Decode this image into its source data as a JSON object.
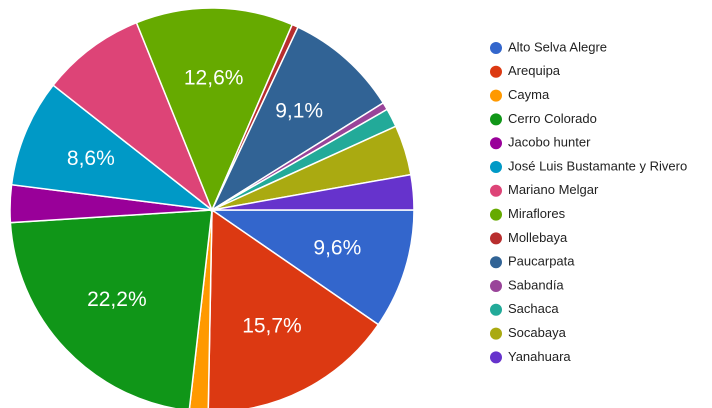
{
  "chart_data": {
    "type": "pie",
    "categories": [
      "Alto Selva Alegre",
      "Arequipa",
      "Cayma",
      "Cerro Colorado",
      "Jacobo hunter",
      "José Luis Bustamante y Rivero",
      "Mariano Melgar",
      "Miraflores",
      "Mollebaya",
      "Paucarpata",
      "Sabandía",
      "Sachaca",
      "Socabaya",
      "Yanahuara"
    ],
    "values": [
      9.6,
      15.7,
      1.5,
      22.2,
      3,
      8.6,
      8.3,
      12.6,
      0.5,
      9.1,
      0.6,
      1.5,
      4,
      2.8
    ],
    "value_labels": [
      "9,6%",
      "15,7%",
      null,
      "22,2%",
      null,
      "8,6%",
      null,
      "12,6%",
      null,
      "9,1%",
      null,
      null,
      null,
      null
    ],
    "colors": [
      "#3366cc",
      "#dc3912",
      "#ff9900",
      "#109618",
      "#990099",
      "#0099c6",
      "#dd4477",
      "#66aa00",
      "#b82e2e",
      "#316395",
      "#994499",
      "#22aa99",
      "#aaaa11",
      "#6633cc"
    ],
    "legend": "right"
  }
}
